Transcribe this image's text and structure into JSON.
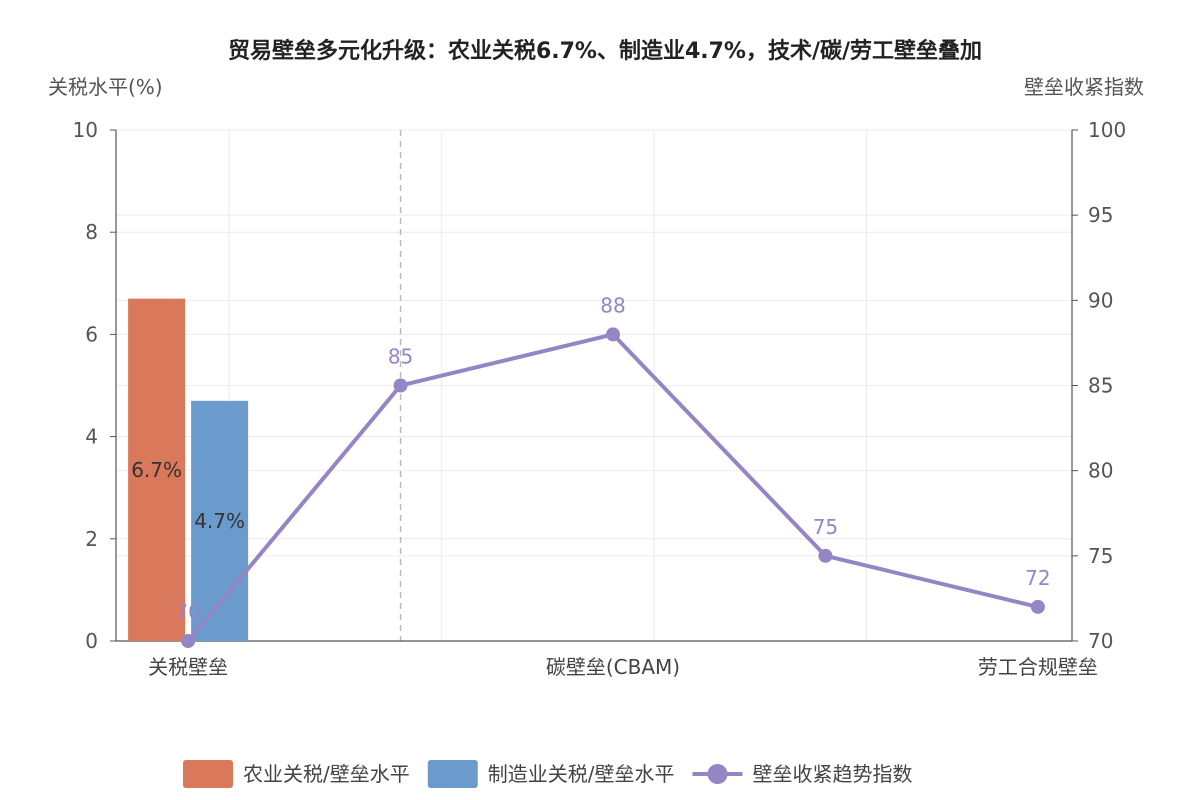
{
  "chart_data": {
    "type": "bar",
    "title": "贸易壁垒多元化升级：农业关税6.7%、制造业4.7%，技术/碳/劳工壁垒叠加",
    "categories": [
      "关税壁垒",
      "",
      "碳壁垒(CBAM)",
      "",
      "劳工合规壁垒"
    ],
    "x_positions": [
      0,
      1,
      2,
      3,
      4
    ],
    "y_left": {
      "label": "关税水平(%)",
      "min": 0,
      "max": 10,
      "ticks": [
        0,
        2,
        4,
        6,
        8,
        10
      ]
    },
    "y_right": {
      "label": "壁垒收紧指数",
      "min": 70,
      "max": 100,
      "ticks": [
        70,
        75,
        80,
        85,
        90,
        95,
        100
      ]
    },
    "bar_series": [
      {
        "name": "农业关税/壁垒水平",
        "color": "#d9785a",
        "points": [
          {
            "x": 0,
            "value": 6.7,
            "label": "6.7%"
          }
        ]
      },
      {
        "name": "制造业关税/壁垒水平",
        "color": "#6b9bcc",
        "points": [
          {
            "x": 0,
            "value": 4.7,
            "label": "4.7%"
          }
        ]
      }
    ],
    "line_series": {
      "name": "壁垒收紧趋势指数",
      "color": "#9585c4",
      "x": [
        0,
        1,
        2,
        3,
        4
      ],
      "values": [
        70,
        85,
        88,
        75,
        72
      ],
      "labels": [
        "70",
        "85",
        "88",
        "75",
        "72"
      ]
    },
    "reference_line_x": 1,
    "grid": true,
    "legend_position": "bottom-center"
  }
}
